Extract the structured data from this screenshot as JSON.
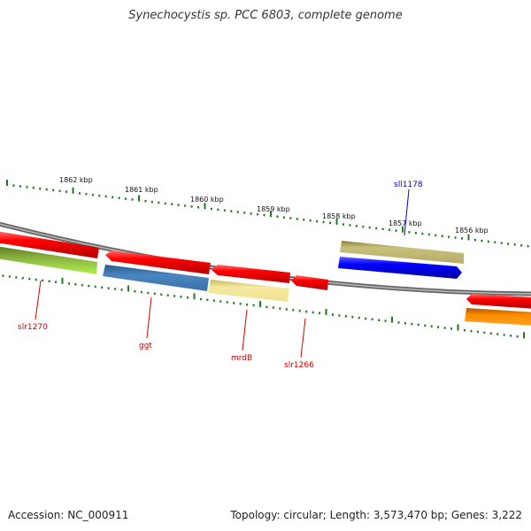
{
  "title": "Synechocystis sp. PCC 6803, complete genome",
  "footer": {
    "accession": "Accession: NC_000911",
    "summary": "Topology: circular; Length: 3,573,470 bp; Genes: 3,222"
  },
  "scale_labels": [
    "1862 kbp",
    "1861 kbp",
    "1860 kbp",
    "1859 kbp",
    "1858 kbp",
    "1857 kbp",
    "1856 kbp"
  ],
  "gene_labels": [
    {
      "name": "slr1270",
      "color": "#cc0000"
    },
    {
      "name": "ggt",
      "color": "#cc0000"
    },
    {
      "name": "mrdB",
      "color": "#cc0000"
    },
    {
      "name": "slr1266",
      "color": "#cc0000"
    },
    {
      "name": "sll1178",
      "color": "#0000cc"
    }
  ],
  "colors": {
    "backbone": "#888888",
    "ticks": "#1f7a1f",
    "red_gene": "#ff0000",
    "blue_gene": "#0000ff",
    "olive_gene": "#c8c07a",
    "steel_gene": "#4a86c0",
    "yellow_gene": "#f5eaa0",
    "lime_gene": "#a8e050",
    "orange_gene": "#ff8c00"
  }
}
